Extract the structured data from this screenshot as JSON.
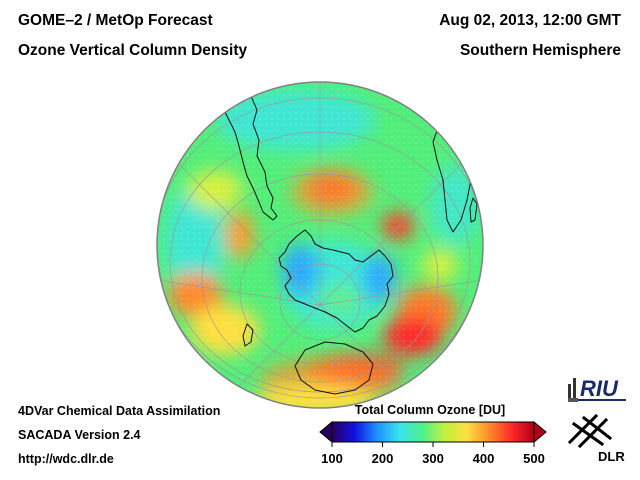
{
  "header": {
    "title_line1": "GOME–2 / MetOp Forecast",
    "title_line2": "Ozone Vertical Column Density",
    "datetime": "Aug 02, 2013, 12:00 GMT",
    "region": "Southern Hemisphere"
  },
  "footer": {
    "method": "4DVar Chemical Data Assimilation",
    "version": "SACADA Version 2.4",
    "url": "http://wdc.dlr.de"
  },
  "colorbar": {
    "title": "Total Column Ozone [DU]",
    "ticks": [
      "100",
      "200",
      "300",
      "400",
      "500"
    ],
    "min": 100,
    "max": 500,
    "colors": [
      "#2a0060",
      "#1010e0",
      "#1f8fff",
      "#39e3f0",
      "#4cf08c",
      "#c0f040",
      "#ffe040",
      "#ff8a2a",
      "#ff2a2a",
      "#b00018"
    ]
  },
  "logos": {
    "riu": "RIU",
    "dlr": "DLR"
  },
  "map": {
    "projection": "orthographic",
    "hemisphere": "south",
    "ozone_regions": [
      {
        "name": "ring-high-south-pacific",
        "value_du": 430
      },
      {
        "name": "ring-high-indian-ocean",
        "value_du": 420
      },
      {
        "name": "antarctic-low",
        "value_du": 210
      },
      {
        "name": "atlantic-high",
        "value_du": 400
      }
    ]
  }
}
